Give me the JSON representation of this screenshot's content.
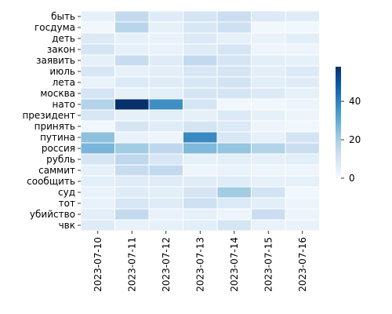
{
  "chart_data": {
    "type": "heatmap",
    "title": "",
    "xlabel": "",
    "ylabel": "",
    "x": [
      "2023-07-10",
      "2023-07-11",
      "2023-07-12",
      "2023-07-13",
      "2023-07-14",
      "2023-07-15",
      "2023-07-16"
    ],
    "y": [
      "быть",
      "госдума",
      "деть",
      "закон",
      "заявить",
      "июль",
      "лета",
      "москва",
      "нато",
      "президент",
      "принять",
      "путина",
      "россия",
      "рубль",
      "саммит",
      "сообщить",
      "суд",
      "тот",
      "убийство",
      "чвк"
    ],
    "values": [
      [
        5,
        15,
        7,
        10,
        13,
        8,
        7
      ],
      [
        2,
        17,
        5,
        9,
        12,
        2,
        2
      ],
      [
        8,
        5,
        4,
        8,
        5,
        4,
        6
      ],
      [
        10,
        5,
        4,
        7,
        10,
        3,
        3
      ],
      [
        5,
        14,
        7,
        15,
        10,
        6,
        5
      ],
      [
        9,
        5,
        6,
        9,
        10,
        6,
        8
      ],
      [
        4,
        8,
        7,
        9,
        11,
        6,
        7
      ],
      [
        10,
        5,
        6,
        10,
        10,
        8,
        5
      ],
      [
        18,
        58,
        37,
        10,
        2,
        2,
        3
      ],
      [
        9,
        5,
        6,
        5,
        8,
        5,
        3
      ],
      [
        2,
        10,
        7,
        10,
        8,
        3,
        2
      ],
      [
        24,
        4,
        3,
        38,
        9,
        5,
        11
      ],
      [
        27,
        21,
        16,
        26,
        23,
        18,
        13
      ],
      [
        10,
        16,
        9,
        5,
        6,
        5,
        6
      ],
      [
        5,
        14,
        15,
        3,
        4,
        3,
        3
      ],
      [
        6,
        7,
        7,
        7,
        7,
        5,
        5
      ],
      [
        4,
        7,
        6,
        10,
        21,
        11,
        2
      ],
      [
        4,
        9,
        7,
        12,
        8,
        6,
        3
      ],
      [
        6,
        15,
        4,
        5,
        3,
        13,
        3
      ],
      [
        7,
        4,
        5,
        6,
        10,
        4,
        4
      ]
    ],
    "colorbar": {
      "ticks": [
        0,
        20,
        40
      ],
      "min": 0,
      "max": 58
    },
    "grid": false,
    "legend": "colorbar-right"
  }
}
